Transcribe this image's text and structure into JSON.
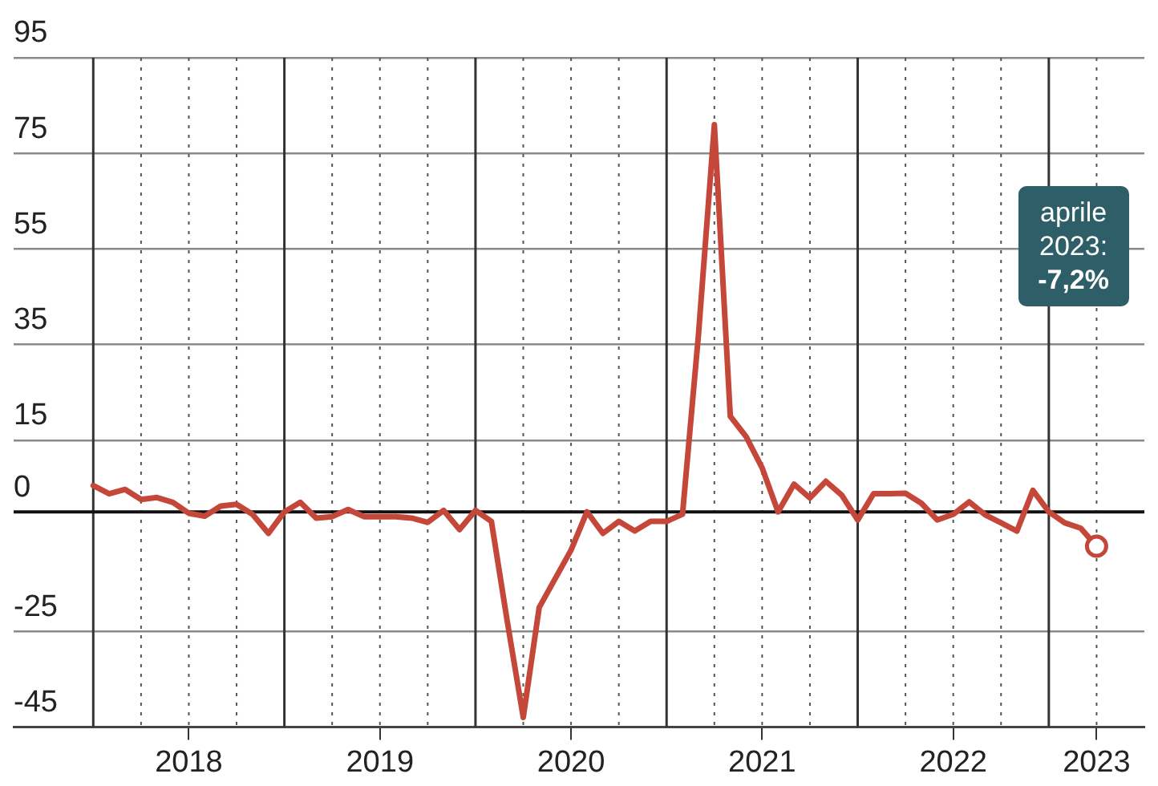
{
  "chart_data": {
    "type": "line",
    "x": [
      "2018-01",
      "2018-02",
      "2018-03",
      "2018-04",
      "2018-05",
      "2018-06",
      "2018-07",
      "2018-08",
      "2018-09",
      "2018-10",
      "2018-11",
      "2018-12",
      "2019-01",
      "2019-02",
      "2019-03",
      "2019-04",
      "2019-05",
      "2019-06",
      "2019-07",
      "2019-08",
      "2019-09",
      "2019-10",
      "2019-11",
      "2019-12",
      "2020-01",
      "2020-02",
      "2020-03",
      "2020-04",
      "2020-05",
      "2020-06",
      "2020-07",
      "2020-08",
      "2020-09",
      "2020-10",
      "2020-11",
      "2020-12",
      "2021-01",
      "2021-02",
      "2021-03",
      "2021-04",
      "2021-05",
      "2021-06",
      "2021-07",
      "2021-08",
      "2021-09",
      "2021-10",
      "2021-11",
      "2021-12",
      "2022-01",
      "2022-02",
      "2022-03",
      "2022-04",
      "2022-05",
      "2022-06",
      "2022-07",
      "2022-08",
      "2022-09",
      "2022-10",
      "2022-11",
      "2022-12",
      "2023-01",
      "2023-02",
      "2023-03",
      "2023-04"
    ],
    "series": [
      {
        "color": "#c4473a",
        "values": [
          5.5,
          3.8,
          4.7,
          2.6,
          3.0,
          2.0,
          -0.3,
          -0.9,
          1.2,
          1.6,
          -0.5,
          -4.5,
          0,
          2,
          -1.3,
          -1,
          0.5,
          -1,
          -1,
          -1,
          -1.3,
          -2.2,
          0.3,
          -3.7,
          0.3,
          -2,
          -23,
          -43,
          -20,
          -14,
          -8,
          0,
          -4.5,
          -2,
          -4,
          -2,
          -2,
          -0.5,
          37,
          81,
          20,
          15.7,
          9.2,
          0,
          5.8,
          2.9,
          6.4,
          3.5,
          -1.7,
          3.8,
          3.8,
          3.9,
          1.8,
          -1.7,
          -0.5,
          2.1,
          -0.6,
          -2.3,
          -4,
          4.5,
          0,
          -2.3,
          -3.4,
          -7.2
        ]
      }
    ],
    "xlim": [
      "2017-08",
      "2023-07"
    ],
    "xticks": [
      {
        "value": "2018-01",
        "label": null
      },
      {
        "value": "2018-04",
        "label": null
      },
      {
        "value": "2018-07",
        "label": "2018"
      },
      {
        "value": "2018-10",
        "label": null
      },
      {
        "value": "2019-01",
        "label": null
      },
      {
        "value": "2019-04",
        "label": null
      },
      {
        "value": "2019-07",
        "label": "2019"
      },
      {
        "value": "2019-10",
        "label": null
      },
      {
        "value": "2020-01",
        "label": null
      },
      {
        "value": "2020-04",
        "label": null
      },
      {
        "value": "2020-07",
        "label": "2020"
      },
      {
        "value": "2020-10",
        "label": null
      },
      {
        "value": "2021-01",
        "label": null
      },
      {
        "value": "2021-04",
        "label": null
      },
      {
        "value": "2021-07",
        "label": "2021"
      },
      {
        "value": "2021-10",
        "label": null
      },
      {
        "value": "2022-01",
        "label": null
      },
      {
        "value": "2022-04",
        "label": null
      },
      {
        "value": "2022-07",
        "label": "2022"
      },
      {
        "value": "2022-10",
        "label": null
      },
      {
        "value": "2023-01",
        "label": null
      },
      {
        "value": "2023-04",
        "label": "2023"
      }
    ],
    "ylim": [
      -45,
      95
    ],
    "yticks": [
      95,
      75,
      55,
      35,
      15,
      0,
      -25,
      -45
    ],
    "grid": true,
    "legend": false,
    "annotations": [
      "aprile 2023: -7,2%"
    ]
  }
}
